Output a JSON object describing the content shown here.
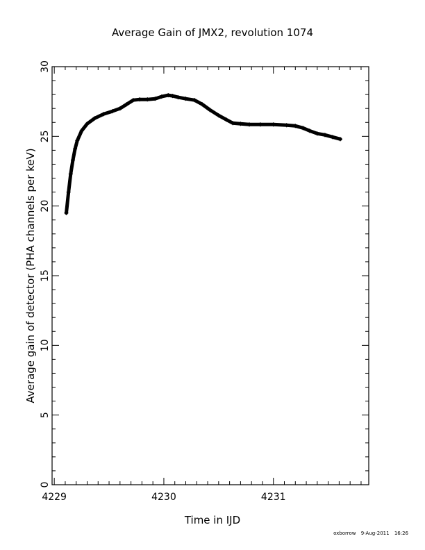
{
  "chart_data": {
    "type": "scatter",
    "title": "Average Gain of JMX2, revolution 1074",
    "xlabel": "Time in IJD",
    "ylabel": "Average gain of detector (PHA channels per keV)",
    "xlim": [
      4228.98,
      4231.87
    ],
    "ylim": [
      0,
      30
    ],
    "x_major_ticks": [
      4229,
      4230,
      4231
    ],
    "x_tick_labels": [
      "4229",
      "4230",
      "4231"
    ],
    "y_major_ticks": [
      0,
      5,
      10,
      15,
      20,
      25,
      30
    ],
    "y_tick_labels": [
      "0",
      "5",
      "10",
      "15",
      "20",
      "25",
      "30"
    ],
    "x_minor_step": 0.1,
    "y_minor_step": 1,
    "grid": false,
    "marker": "plus",
    "series": [
      {
        "x": [
          4229.11,
          4229.13,
          4229.15,
          4229.17,
          4229.19,
          4229.21,
          4229.25,
          4229.3,
          4229.37,
          4229.45,
          4229.53,
          4229.6,
          4229.66,
          4229.72,
          4229.78,
          4229.85,
          4229.92,
          4229.98,
          4230.04,
          4230.08,
          4230.13,
          4230.2,
          4230.28,
          4230.35,
          4230.42,
          4230.5,
          4230.57,
          4230.63,
          4230.7,
          4230.78,
          4230.88,
          4231.0,
          4231.12,
          4231.2,
          4231.27,
          4231.33,
          4231.4,
          4231.47,
          4231.54,
          4231.61
        ],
        "y": [
          19.5,
          21.0,
          22.3,
          23.3,
          24.1,
          24.7,
          25.4,
          25.9,
          26.3,
          26.6,
          26.8,
          27.0,
          27.3,
          27.6,
          27.65,
          27.65,
          27.7,
          27.85,
          27.95,
          27.9,
          27.8,
          27.7,
          27.6,
          27.3,
          26.9,
          26.5,
          26.2,
          25.95,
          25.9,
          25.85,
          25.85,
          25.85,
          25.8,
          25.75,
          25.6,
          25.4,
          25.2,
          25.1,
          24.95,
          24.8
        ]
      }
    ]
  },
  "footer": {
    "user": "oxborrow",
    "date": "9-Aug-2011",
    "time": "16:26"
  }
}
